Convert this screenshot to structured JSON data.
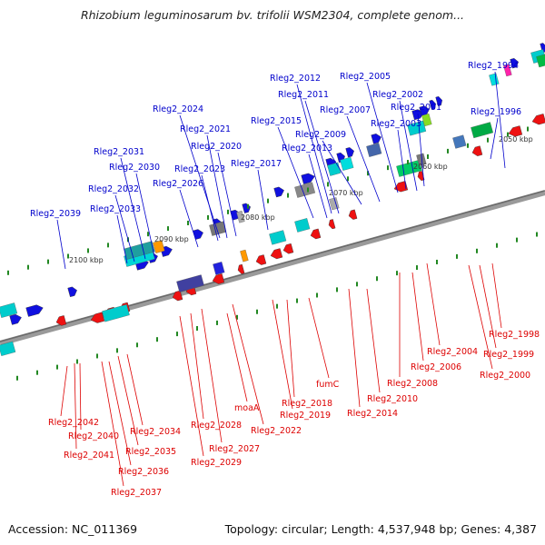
{
  "title": "Rhizobium leguminosarum bv. trifolii WSM2304, complete genom...",
  "footer": {
    "accession": "Accession: NC_011369",
    "summary": "Topology: circular; Length: 4,537,948 bp; Genes: 4,387"
  },
  "colors": {
    "forward": "#1010e0",
    "reverse": "#ee1111",
    "label_forward": "#0000cc",
    "label_reverse": "#dd0000",
    "backbone": "#808080"
  },
  "kbp_labels": [
    "2050 kbp",
    "2060 kbp",
    "2070 kbp",
    "2080 kbp",
    "2090 kbp",
    "2100 kbp"
  ],
  "forward_labels": [
    "Rleg2_1994",
    "Rleg2_1996",
    "Rleg2_2001",
    "Rleg2_2002",
    "Rleg2_2003",
    "Rleg2_2005",
    "Rleg2_2007",
    "Rleg2_2009",
    "Rleg2_2011",
    "Rleg2_2012",
    "Rleg2_2013",
    "Rleg2_2015",
    "Rleg2_2017",
    "Rleg2_2020",
    "Rleg2_2021",
    "Rleg2_2023",
    "Rleg2_2024",
    "Rleg2_2026",
    "Rleg2_2030",
    "Rleg2_2031",
    "Rleg2_2032",
    "Rleg2_2033",
    "Rleg2_2039"
  ],
  "reverse_labels": [
    "Rleg2_1998",
    "Rleg2_1999",
    "Rleg2_2000",
    "Rleg2_2004",
    "Rleg2_2006",
    "Rleg2_2008",
    "Rleg2_2010",
    "Rleg2_2014",
    "fumC",
    "Rleg2_2018",
    "Rleg2_2019",
    "Rleg2_2022",
    "moaA",
    "Rleg2_2027",
    "Rleg2_2028",
    "Rleg2_2029",
    "Rleg2_2034",
    "Rleg2_2035",
    "Rleg2_2036",
    "Rleg2_2037",
    "Rleg2_2040",
    "Rleg2_2041",
    "Rleg2_2042"
  ]
}
